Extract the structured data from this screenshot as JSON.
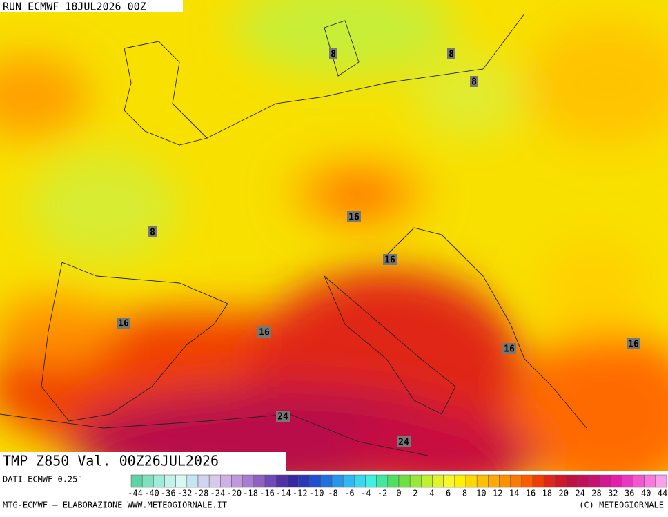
{
  "header": {
    "run": "RUN ECMWF 18JUL2026 00Z",
    "field": "TMP Z850 Val. 00Z26JUL2026"
  },
  "map": {
    "contour_labels": [
      8,
      8,
      8,
      16,
      8,
      16,
      16,
      16,
      16,
      16,
      24,
      24
    ]
  },
  "legend": {
    "source": "DATI ECMWF 0.25°",
    "ticks": [
      -44,
      -40,
      -36,
      -32,
      -28,
      -24,
      -20,
      -18,
      -16,
      -14,
      -12,
      -10,
      -8,
      -6,
      -4,
      -2,
      0,
      2,
      4,
      6,
      8,
      10,
      12,
      14,
      16,
      18,
      20,
      24,
      28,
      32,
      36,
      40,
      44
    ],
    "colors": [
      "#5fd3a8",
      "#7fe0c0",
      "#a0ecd8",
      "#c0f4e8",
      "#d8f8f4",
      "#c8e4f4",
      "#d0d4f0",
      "#d8c8ec",
      "#d0b0e4",
      "#c098dc",
      "#a87cd0",
      "#9060c4",
      "#7048b8",
      "#5030a8",
      "#3828a0",
      "#2838b8",
      "#2050d0",
      "#2070e0",
      "#2894ec",
      "#30b8f0",
      "#38d8f0",
      "#40f0e0",
      "#40e8a0",
      "#50e060",
      "#70e040",
      "#98e838",
      "#c0f030",
      "#e0f428",
      "#f8f828",
      "#fff000",
      "#ffd800",
      "#ffc000",
      "#ffa800",
      "#ff9000",
      "#ff7800",
      "#ff5c00",
      "#f04000",
      "#e02818",
      "#d01828",
      "#c01040",
      "#c01058",
      "#c81070",
      "#d01890",
      "#e020a8",
      "#e838c0",
      "#f058d0",
      "#f878e0",
      "#f8a0ec"
    ]
  },
  "footer": {
    "left": "MTG-ECMWF – ELABORAZIONE WWW.METEOGIORNALE.IT",
    "right": "(C) METEOGIORNALE"
  }
}
